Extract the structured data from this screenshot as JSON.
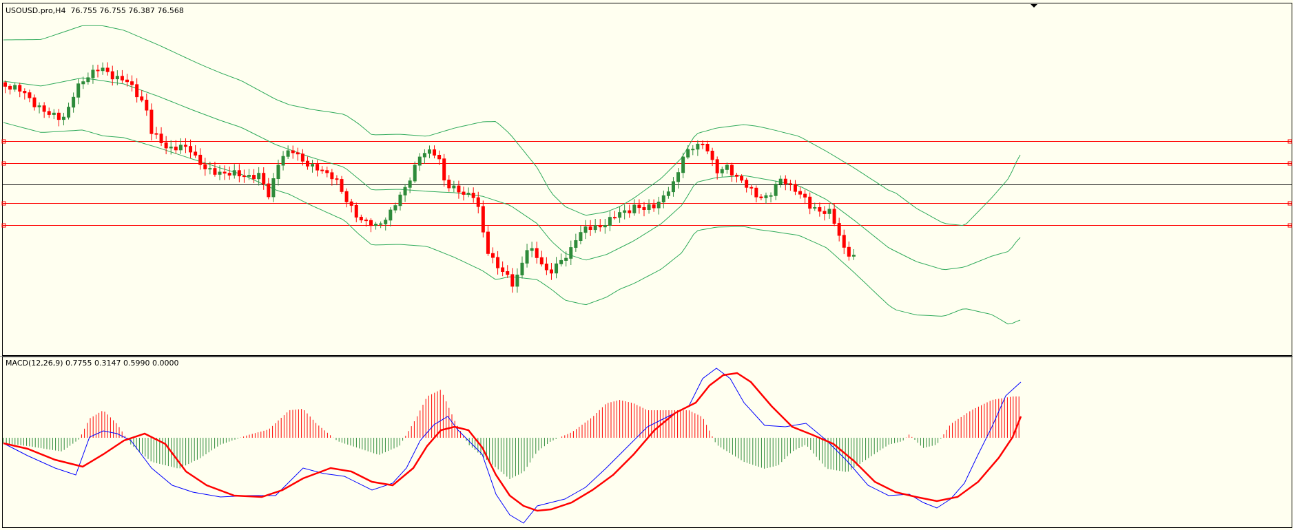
{
  "price_panel": {
    "header": "USOUSD.pro,H4  76.755 76.755 76.387 76.568"
  },
  "macd_panel": {
    "header": "MACD(12,26,9) 0.7755 0.3147 0.5990 0.0000"
  },
  "colors": {
    "background": "#fffff0",
    "bull_candle": "#2e8b3a",
    "bear_candle": "#ff0000",
    "bollinger": "#2eaa5a",
    "hline": "#ff0000",
    "current_price_line": "#000000",
    "macd_main": "#0000ff",
    "macd_signal": "#ff0000",
    "histogram_positive": "#ff0000",
    "histogram_negative": "#2e8b3a"
  },
  "chart_data": [
    {
      "type": "candlestick",
      "symbol": "USOUSD.pro",
      "timeframe": "H4",
      "last_bar": {
        "open": 76.755,
        "high": 76.755,
        "low": 76.387,
        "close": 76.568
      },
      "indicators": [
        "Bollinger Bands",
        "horizontal lines"
      ],
      "horizontal_lines": 5,
      "has_current_price_line": true,
      "grid": false
    },
    {
      "type": "line+bar",
      "name": "MACD(12,26,9)",
      "values": [
        0.7755,
        0.3147,
        0.599,
        0.0
      ],
      "grid": false
    }
  ]
}
